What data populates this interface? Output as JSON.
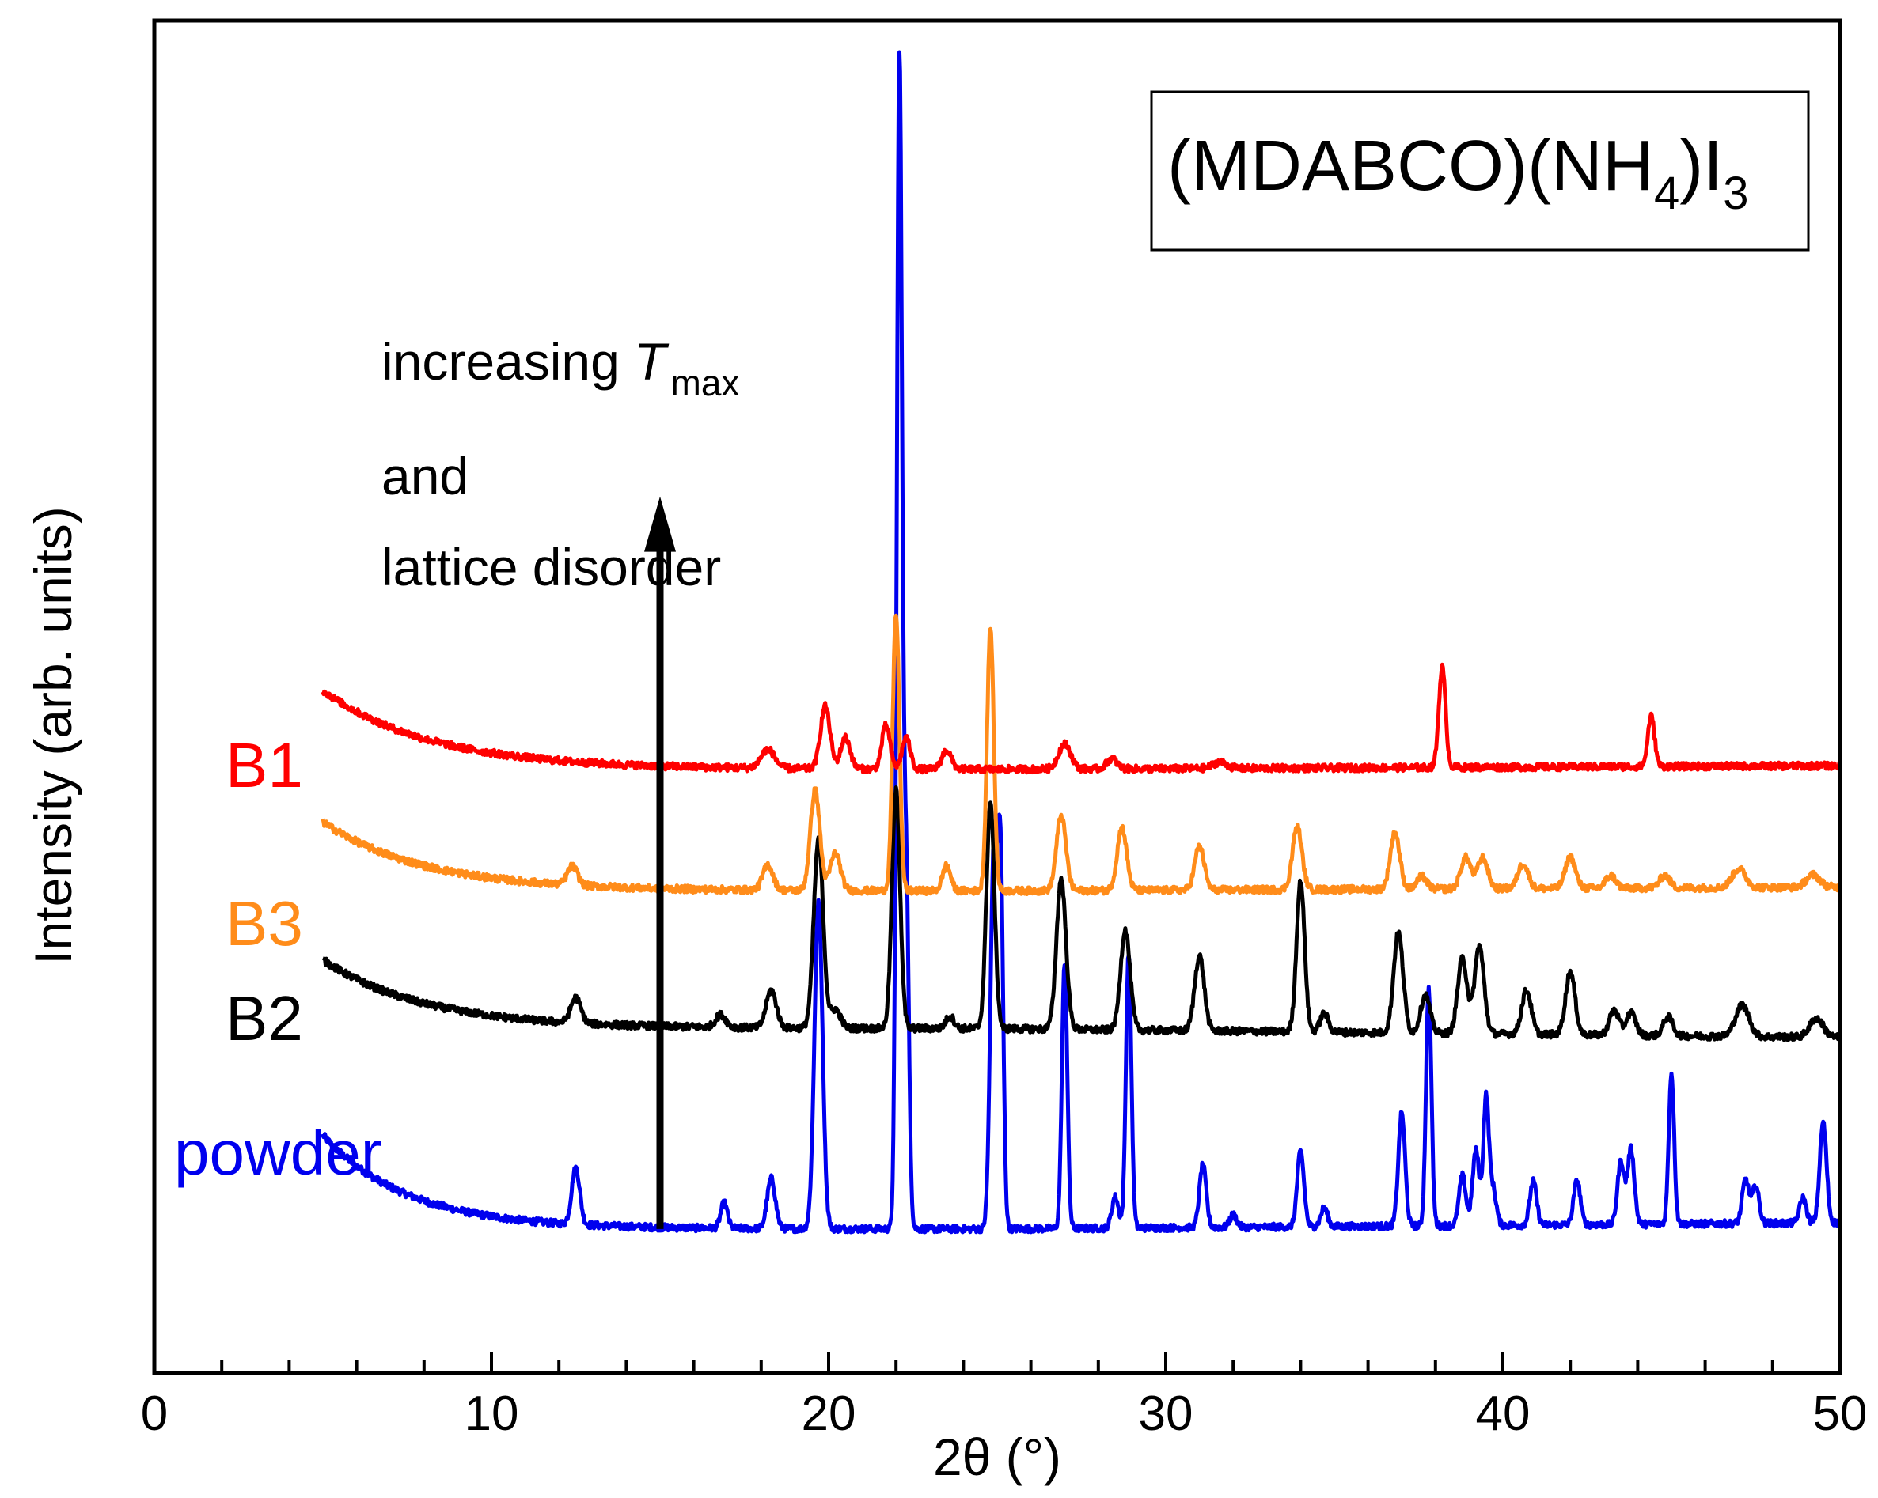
{
  "chart_data": {
    "type": "line",
    "xlabel": "2θ (°)",
    "ylabel": "Intensity (arb. units)",
    "xlim": [
      0,
      50
    ],
    "ylim": [
      -8,
      100
    ],
    "x_ticks_major": [
      0,
      10,
      20,
      30,
      40,
      50
    ],
    "x_ticks_minor_step": 2,
    "y_ticks": "none",
    "grid": false,
    "legend": "none",
    "title_box": {
      "prefix": "(MDABCO)(NH",
      "sub1": "4",
      "mid": ")I",
      "sub2": "3"
    },
    "annotation": {
      "line1_prefix": "increasing ",
      "line1_italic": "T",
      "line1_sub": "max",
      "line2": "and",
      "line3": "lattice disorder",
      "arrow_x": 15,
      "arrow_from": 3.5,
      "arrow_to": 62
    },
    "series": [
      {
        "name": "powder",
        "color": "#0000ee",
        "x_start": 5,
        "baseline": {
          "start": 11,
          "mid": 3.5,
          "end": 4,
          "decay": 2.5
        },
        "peaks": [
          [
            12.5,
            4.5,
            0.12
          ],
          [
            16.9,
            2,
            0.1
          ],
          [
            18.3,
            4,
            0.12
          ],
          [
            19.7,
            26,
            0.12
          ],
          [
            22.1,
            93,
            0.08
          ],
          [
            22.3,
            28,
            0.08
          ],
          [
            24.9,
            30,
            0.1
          ],
          [
            25.1,
            28,
            0.08
          ],
          [
            27.0,
            21,
            0.08
          ],
          [
            28.5,
            2.5,
            0.1
          ],
          [
            28.9,
            22,
            0.08
          ],
          [
            31.1,
            5,
            0.1
          ],
          [
            32.0,
            1,
            0.1
          ],
          [
            34.0,
            6,
            0.1
          ],
          [
            34.7,
            1.5,
            0.1
          ],
          [
            37.0,
            9,
            0.1
          ],
          [
            37.8,
            19,
            0.08
          ],
          [
            38.8,
            4,
            0.1
          ],
          [
            39.2,
            6,
            0.1
          ],
          [
            39.5,
            10,
            0.08
          ],
          [
            39.7,
            3,
            0.1
          ],
          [
            40.9,
            3.5,
            0.1
          ],
          [
            42.2,
            3.5,
            0.1
          ],
          [
            43.5,
            5,
            0.1
          ],
          [
            43.8,
            6,
            0.1
          ],
          [
            45.0,
            12,
            0.08
          ],
          [
            47.2,
            3.5,
            0.1
          ],
          [
            47.5,
            3,
            0.1
          ],
          [
            48.9,
            2,
            0.1
          ],
          [
            49.5,
            8,
            0.1
          ]
        ]
      },
      {
        "name": "B2",
        "color": "#000000",
        "x_start": 5,
        "baseline": {
          "start": 25,
          "mid": 19.5,
          "end": 18.8,
          "decay": 3
        },
        "peaks": [
          [
            12.5,
            2,
            0.15
          ],
          [
            16.8,
            1,
            0.15
          ],
          [
            18.3,
            3,
            0.15
          ],
          [
            19.7,
            15,
            0.14
          ],
          [
            20.2,
            1.5,
            0.15
          ],
          [
            22.0,
            19,
            0.12
          ],
          [
            23.6,
            1,
            0.12
          ],
          [
            24.8,
            18,
            0.12
          ],
          [
            26.9,
            12,
            0.14
          ],
          [
            28.8,
            8,
            0.14
          ],
          [
            31.0,
            6,
            0.14
          ],
          [
            34.0,
            12,
            0.12
          ],
          [
            34.7,
            1.5,
            0.12
          ],
          [
            36.9,
            8,
            0.14
          ],
          [
            37.7,
            3,
            0.14
          ],
          [
            38.8,
            6,
            0.14
          ],
          [
            39.3,
            7,
            0.14
          ],
          [
            40.7,
            3.5,
            0.14
          ],
          [
            42.0,
            5,
            0.14
          ],
          [
            43.3,
            2,
            0.14
          ],
          [
            43.8,
            1.8,
            0.14
          ],
          [
            44.9,
            1.5,
            0.14
          ],
          [
            47.1,
            2.5,
            0.2
          ],
          [
            49.3,
            1.5,
            0.2
          ]
        ]
      },
      {
        "name": "B3",
        "color": "#ff8c1a",
        "x_start": 5,
        "baseline": {
          "start": 36,
          "mid": 30.5,
          "end": 30.8,
          "decay": 3
        },
        "peaks": [
          [
            12.4,
            1.5,
            0.15
          ],
          [
            18.2,
            2,
            0.15
          ],
          [
            19.6,
            8,
            0.14
          ],
          [
            20.2,
            3,
            0.15
          ],
          [
            22.0,
            22,
            0.1
          ],
          [
            23.5,
            2,
            0.12
          ],
          [
            24.8,
            21,
            0.1
          ],
          [
            26.9,
            6,
            0.14
          ],
          [
            28.7,
            5,
            0.14
          ],
          [
            31.0,
            3.5,
            0.14
          ],
          [
            33.9,
            5,
            0.14
          ],
          [
            36.8,
            4.5,
            0.14
          ],
          [
            37.6,
            1,
            0.14
          ],
          [
            38.9,
            2.5,
            0.15
          ],
          [
            39.4,
            2.5,
            0.15
          ],
          [
            40.6,
            2,
            0.15
          ],
          [
            42.0,
            2.5,
            0.15
          ],
          [
            43.2,
            1,
            0.15
          ],
          [
            44.8,
            1,
            0.15
          ],
          [
            47.0,
            1.5,
            0.2
          ],
          [
            49.2,
            1,
            0.2
          ]
        ]
      },
      {
        "name": "B1",
        "color": "#ff0000",
        "x_start": 5,
        "baseline": {
          "start": 46.5,
          "mid": 40.2,
          "end": 40.5,
          "decay": 3.2
        },
        "peaks": [
          [
            18.2,
            1.5,
            0.2
          ],
          [
            19.9,
            5,
            0.14
          ],
          [
            20.5,
            2.5,
            0.14
          ],
          [
            21.7,
            3.5,
            0.12
          ],
          [
            22.3,
            2.5,
            0.12
          ],
          [
            23.5,
            1.5,
            0.14
          ],
          [
            27.0,
            2,
            0.18
          ],
          [
            28.4,
            0.8,
            0.15
          ],
          [
            31.6,
            0.5,
            0.2
          ],
          [
            38.2,
            8,
            0.1
          ],
          [
            44.4,
            4,
            0.1
          ]
        ]
      }
    ]
  }
}
